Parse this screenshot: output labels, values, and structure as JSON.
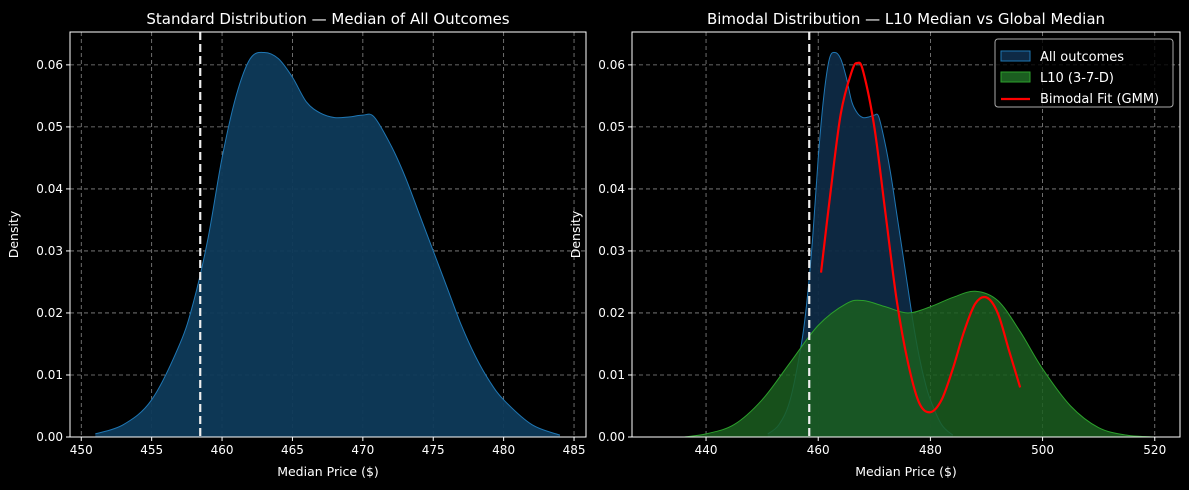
{
  "chart_data": [
    {
      "type": "area",
      "title": "Standard Distribution — Median of All Outcomes",
      "xlabel": "Median Price ($)",
      "ylabel": "Density",
      "xlim": [
        449.2,
        485.85
      ],
      "ylim": [
        0,
        0.0653
      ],
      "xticks": [
        450,
        455,
        460,
        465,
        470,
        475,
        480,
        485
      ],
      "yticks": [
        0.0,
        0.01,
        0.02,
        0.03,
        0.04,
        0.05,
        0.06
      ],
      "grid": true,
      "vline": 458.45,
      "series": [
        {
          "name": "All outcomes",
          "color": "#1f77b4",
          "fill": "#0e3a5a",
          "x": [
            451,
            453,
            455,
            457,
            458,
            459,
            460,
            461,
            462,
            463,
            464,
            465,
            466,
            467,
            468,
            469,
            470,
            470.8,
            472,
            473,
            474,
            475,
            476,
            477,
            478,
            479,
            480,
            482,
            484
          ],
          "y": [
            0.0005,
            0.002,
            0.006,
            0.015,
            0.022,
            0.032,
            0.045,
            0.055,
            0.061,
            0.062,
            0.061,
            0.058,
            0.054,
            0.0522,
            0.0515,
            0.0516,
            0.0519,
            0.0516,
            0.047,
            0.042,
            0.036,
            0.03,
            0.024,
            0.018,
            0.013,
            0.009,
            0.006,
            0.002,
            0.0003
          ]
        }
      ]
    },
    {
      "type": "area",
      "title": "Bimodal Distribution — L10 Median vs Global Median",
      "xlabel": "Median Price ($)",
      "ylabel": "Density",
      "xlim": [
        426.8,
        524.5
      ],
      "ylim": [
        0,
        0.0653
      ],
      "xticks": [
        440,
        460,
        480,
        500,
        520
      ],
      "yticks": [
        0.0,
        0.01,
        0.02,
        0.03,
        0.04,
        0.05,
        0.06
      ],
      "grid": true,
      "vline": 458.4,
      "legend": "top-right",
      "series": [
        {
          "name": "All outcomes",
          "kind": "area",
          "color": "#1f77b4",
          "fill": "#0e2a45",
          "x": [
            451,
            453,
            455,
            457,
            458,
            459,
            460,
            461,
            462,
            463,
            464,
            465,
            466,
            467,
            468,
            469,
            470,
            470.8,
            472,
            473,
            474,
            475,
            476,
            477,
            478,
            479,
            480,
            482,
            484
          ],
          "y": [
            0.0005,
            0.002,
            0.006,
            0.015,
            0.022,
            0.032,
            0.045,
            0.055,
            0.061,
            0.062,
            0.061,
            0.058,
            0.054,
            0.0522,
            0.0515,
            0.0516,
            0.0519,
            0.0516,
            0.047,
            0.042,
            0.036,
            0.03,
            0.024,
            0.018,
            0.013,
            0.009,
            0.006,
            0.002,
            0.0003
          ]
        },
        {
          "name": "L10 (3-7-D)",
          "kind": "area",
          "color": "#2ca02c",
          "fill": "#1b5e20",
          "x": [
            436,
            440,
            445,
            450,
            455,
            460,
            465,
            468,
            472,
            476,
            480,
            484,
            488,
            492,
            496,
            500,
            505,
            510,
            515,
            520
          ],
          "y": [
            0,
            0.0005,
            0.002,
            0.006,
            0.012,
            0.018,
            0.0215,
            0.022,
            0.021,
            0.02,
            0.021,
            0.0225,
            0.0235,
            0.022,
            0.017,
            0.011,
            0.005,
            0.0015,
            0.0003,
            0
          ]
        },
        {
          "name": "Bimodal Fit (GMM)",
          "kind": "line",
          "color": "#ff0000",
          "x": [
            460.5,
            462,
            464,
            466,
            467,
            468,
            470,
            472,
            474,
            476,
            478,
            480,
            482,
            484,
            486,
            488,
            490,
            492,
            494,
            496
          ],
          "y": [
            0.0265,
            0.038,
            0.052,
            0.059,
            0.0603,
            0.059,
            0.05,
            0.036,
            0.022,
            0.012,
            0.0055,
            0.004,
            0.006,
            0.011,
            0.017,
            0.0215,
            0.0225,
            0.02,
            0.014,
            0.008
          ]
        }
      ]
    }
  ]
}
